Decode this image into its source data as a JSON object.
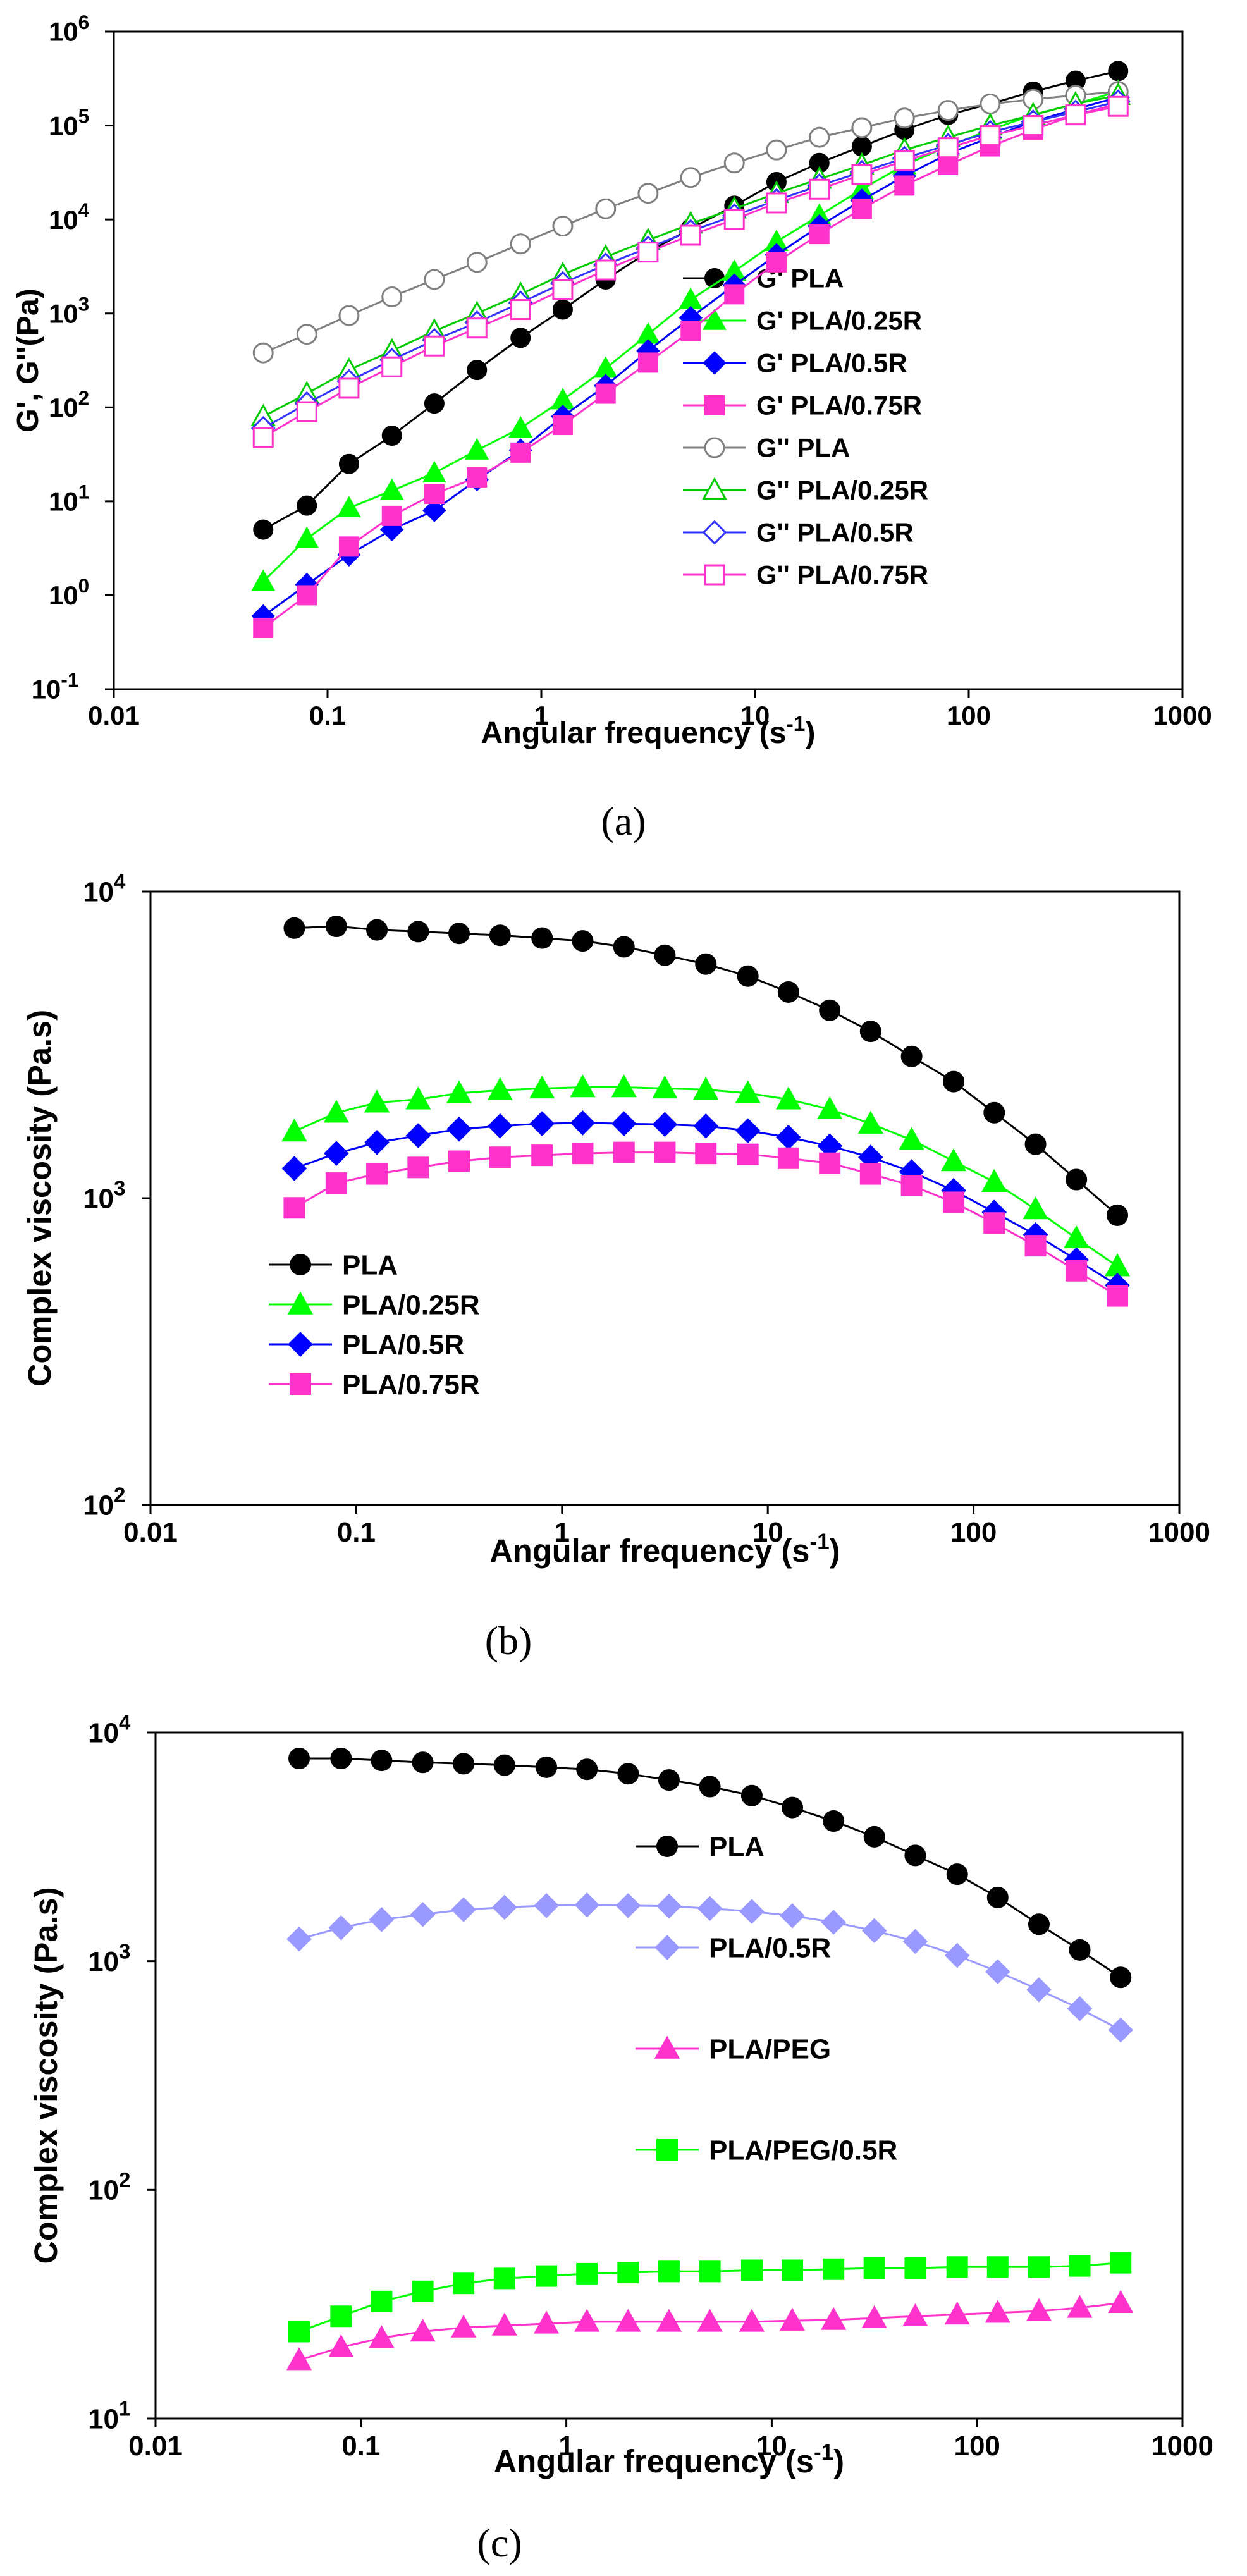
{
  "panels": [
    {
      "id": "a",
      "caption": "(a)",
      "x_axis_label": "Angular frequency (s",
      "x_axis_sup": "-1",
      "x_axis_suffix": ")",
      "y_axis_label": "G', G''(Pa)"
    },
    {
      "id": "b",
      "caption": "(b)",
      "x_axis_label": "Angular frequency (s",
      "x_axis_sup": "-1",
      "x_axis_suffix": ")",
      "y_axis_label": "Complex viscosity (Pa.s)"
    },
    {
      "id": "c",
      "caption": "(c)",
      "x_axis_label": "Angular frequency (s",
      "x_axis_sup": "-1",
      "x_axis_suffix": ")",
      "y_axis_label": "Complex viscosity (Pa.s)"
    }
  ],
  "chart_data": [
    {
      "panel": "a",
      "type": "line",
      "xscale": "log",
      "yscale": "log",
      "xlabel": "Angular frequency (s-1)",
      "ylabel": "G', G''(Pa)",
      "xlim": [
        0.01,
        1000
      ],
      "ylim": [
        0.1,
        1000000
      ],
      "x_ticks": [
        {
          "value": 0.01,
          "label": "0.01"
        },
        {
          "value": 0.1,
          "label": "0.1"
        },
        {
          "value": 1,
          "label": "1"
        },
        {
          "value": 10,
          "label": "10"
        },
        {
          "value": 100,
          "label": "100"
        },
        {
          "value": 1000,
          "label": "1000"
        }
      ],
      "y_ticks": [
        {
          "value": 0.1,
          "base": "10",
          "exp": "-1"
        },
        {
          "value": 1,
          "base": "10",
          "exp": "0"
        },
        {
          "value": 10,
          "base": "10",
          "exp": "1"
        },
        {
          "value": 100,
          "base": "10",
          "exp": "2"
        },
        {
          "value": 1000,
          "base": "10",
          "exp": "3"
        },
        {
          "value": 10000,
          "base": "10",
          "exp": "4"
        },
        {
          "value": 100000,
          "base": "10",
          "exp": "5"
        },
        {
          "value": 1000000,
          "base": "10",
          "exp": "6"
        }
      ],
      "legend_position": "right-middle",
      "legend_layout": "list",
      "x": [
        0.05,
        0.08,
        0.126,
        0.2,
        0.316,
        0.5,
        0.8,
        1.26,
        2,
        3.16,
        5,
        8,
        12.6,
        20,
        31.6,
        50,
        80,
        126,
        200,
        316,
        500
      ],
      "series": [
        {
          "name": "G' PLA",
          "color": "#000000",
          "marker": "circle",
          "filled": true,
          "values": [
            5,
            9,
            25,
            50,
            110,
            250,
            550,
            1100,
            2300,
            4500,
            8000,
            14000,
            25000,
            40000,
            60000,
            90000,
            130000,
            170000,
            230000,
            300000,
            380000
          ]
        },
        {
          "name": "G' PLA/0.25R",
          "color": "#00ff00",
          "marker": "triangle",
          "filled": true,
          "values": [
            1.4,
            4,
            8.5,
            13,
            20,
            35,
            60,
            120,
            260,
            600,
            1400,
            2800,
            5800,
            11000,
            21000,
            38000,
            60000,
            90000,
            130000,
            170000,
            230000
          ]
        },
        {
          "name": "G' PLA/0.5R",
          "color": "#0000ff",
          "marker": "diamond",
          "filled": true,
          "values": [
            0.6,
            1.3,
            2.7,
            5,
            8,
            17,
            35,
            80,
            170,
            400,
            900,
            2000,
            4200,
            8500,
            16000,
            29000,
            50000,
            75000,
            110000,
            150000,
            200000
          ]
        },
        {
          "name": "G' PLA/0.75R",
          "color": "#ff33cc",
          "marker": "square",
          "filled": true,
          "values": [
            0.45,
            1,
            3.3,
            7,
            12,
            18,
            33,
            65,
            140,
            300,
            650,
            1600,
            3500,
            7000,
            13000,
            23000,
            38000,
            60000,
            90000,
            130000,
            170000
          ]
        },
        {
          "name": "G'' PLA",
          "color": "#808080",
          "marker": "circle",
          "filled": false,
          "values": [
            380,
            600,
            950,
            1500,
            2300,
            3500,
            5500,
            8500,
            13000,
            19000,
            28000,
            40000,
            55000,
            75000,
            95000,
            120000,
            145000,
            170000,
            190000,
            210000,
            230000
          ]
        },
        {
          "name": "G'' PLA/0.25R",
          "color": "#00cc00",
          "marker": "triangle",
          "filled": false,
          "values": [
            80,
            140,
            250,
            400,
            650,
            1000,
            1600,
            2600,
            4000,
            6000,
            9000,
            13000,
            19000,
            27000,
            38000,
            55000,
            75000,
            100000,
            130000,
            170000,
            210000
          ]
        },
        {
          "name": "G'' PLA/0.5R",
          "color": "#3333ff",
          "marker": "diamond",
          "filled": false,
          "values": [
            60,
            110,
            190,
            320,
            520,
            800,
            1300,
            2100,
            3300,
            5000,
            7500,
            11000,
            16000,
            23000,
            32000,
            45000,
            62000,
            85000,
            110000,
            140000,
            180000
          ]
        },
        {
          "name": "G'' PLA/0.75R",
          "color": "#ff33cc",
          "marker": "square",
          "filled": false,
          "values": [
            48,
            90,
            160,
            270,
            450,
            700,
            1100,
            1800,
            2900,
            4500,
            6800,
            10000,
            15000,
            21000,
            30000,
            42000,
            58000,
            78000,
            100000,
            130000,
            160000
          ]
        }
      ]
    },
    {
      "panel": "b",
      "type": "line",
      "xscale": "log",
      "yscale": "log",
      "xlabel": "Angular frequency (s-1)",
      "ylabel": "Complex viscosity (Pa.s)",
      "xlim": [
        0.01,
        1000
      ],
      "ylim": [
        100,
        10000
      ],
      "x_ticks": [
        {
          "value": 0.01,
          "label": "0.01"
        },
        {
          "value": 0.1,
          "label": "0.1"
        },
        {
          "value": 1,
          "label": "1"
        },
        {
          "value": 10,
          "label": "10"
        },
        {
          "value": 100,
          "label": "100"
        },
        {
          "value": 1000,
          "label": "1000"
        }
      ],
      "y_ticks": [
        {
          "value": 100,
          "base": "10",
          "exp": "2"
        },
        {
          "value": 1000,
          "base": "10",
          "exp": "3"
        },
        {
          "value": 10000,
          "base": "10",
          "exp": "4"
        }
      ],
      "legend_position": "left-middle",
      "legend_layout": "list",
      "x": [
        0.05,
        0.08,
        0.126,
        0.2,
        0.316,
        0.5,
        0.8,
        1.26,
        2,
        3.16,
        5,
        8,
        12.6,
        20,
        31.6,
        50,
        80,
        126,
        200,
        316,
        500
      ],
      "series": [
        {
          "name": "PLA",
          "color": "#000000",
          "marker": "circle",
          "filled": true,
          "values": [
            7600,
            7700,
            7500,
            7400,
            7300,
            7200,
            7050,
            6900,
            6600,
            6200,
            5800,
            5300,
            4700,
            4100,
            3500,
            2900,
            2400,
            1900,
            1500,
            1150,
            880
          ]
        },
        {
          "name": "PLA/0.25R",
          "color": "#00ff00",
          "marker": "triangle",
          "filled": true,
          "values": [
            1650,
            1900,
            2050,
            2100,
            2200,
            2250,
            2280,
            2300,
            2300,
            2280,
            2260,
            2200,
            2100,
            1950,
            1750,
            1550,
            1320,
            1130,
            920,
            740,
            600
          ]
        },
        {
          "name": "PLA/0.5R",
          "color": "#0000ff",
          "marker": "diamond",
          "filled": true,
          "values": [
            1250,
            1400,
            1520,
            1600,
            1680,
            1720,
            1750,
            1760,
            1750,
            1740,
            1720,
            1660,
            1580,
            1480,
            1360,
            1220,
            1060,
            900,
            760,
            630,
            520
          ]
        },
        {
          "name": "PLA/0.75R",
          "color": "#ff33cc",
          "marker": "square",
          "filled": true,
          "values": [
            930,
            1120,
            1200,
            1260,
            1320,
            1360,
            1380,
            1400,
            1410,
            1410,
            1400,
            1390,
            1350,
            1300,
            1200,
            1100,
            970,
            830,
            700,
            580,
            480
          ]
        }
      ]
    },
    {
      "panel": "c",
      "type": "line",
      "xscale": "log",
      "yscale": "log",
      "xlabel": "Angular frequency (s-1)",
      "ylabel": "Complex viscosity (Pa.s)",
      "xlim": [
        0.01,
        1000
      ],
      "ylim": [
        10,
        10000
      ],
      "x_ticks": [
        {
          "value": 0.01,
          "label": "0.01"
        },
        {
          "value": 0.1,
          "label": "0.1"
        },
        {
          "value": 1,
          "label": "1"
        },
        {
          "value": 10,
          "label": "10"
        },
        {
          "value": 100,
          "label": "100"
        },
        {
          "value": 1000,
          "label": "1000"
        }
      ],
      "y_ticks": [
        {
          "value": 10,
          "base": "10",
          "exp": "1"
        },
        {
          "value": 100,
          "base": "10",
          "exp": "2"
        },
        {
          "value": 1000,
          "base": "10",
          "exp": "3"
        },
        {
          "value": 10000,
          "base": "10",
          "exp": "4"
        }
      ],
      "legend_position": "center",
      "legend_layout": "spaced",
      "x": [
        0.05,
        0.08,
        0.126,
        0.2,
        0.316,
        0.5,
        0.8,
        1.26,
        2,
        3.16,
        5,
        8,
        12.6,
        20,
        31.6,
        50,
        80,
        126,
        200,
        316,
        500
      ],
      "series": [
        {
          "name": "PLA",
          "color": "#000000",
          "marker": "circle",
          "filled": true,
          "values": [
            7700,
            7700,
            7550,
            7400,
            7300,
            7200,
            7050,
            6900,
            6600,
            6200,
            5800,
            5300,
            4700,
            4100,
            3500,
            2900,
            2400,
            1900,
            1450,
            1120,
            850
          ]
        },
        {
          "name": "PLA/0.5R",
          "color": "#9999ff",
          "marker": "diamond",
          "filled": true,
          "values": [
            1250,
            1400,
            1520,
            1600,
            1680,
            1720,
            1750,
            1760,
            1750,
            1740,
            1700,
            1650,
            1580,
            1480,
            1360,
            1220,
            1060,
            900,
            750,
            620,
            500
          ]
        },
        {
          "name": "PLA/PEG",
          "color": "#ff33cc",
          "marker": "triangle",
          "filled": true,
          "values": [
            18,
            20.5,
            22.5,
            24,
            25,
            25.5,
            26,
            26.5,
            26.5,
            26.5,
            26.5,
            26.5,
            26.8,
            27,
            27.5,
            28,
            28.5,
            29,
            29.5,
            30.5,
            32
          ]
        },
        {
          "name": "PLA/PEG/0.5R",
          "color": "#00ff00",
          "marker": "square",
          "filled": true,
          "values": [
            24,
            28,
            32.5,
            36,
            39,
            41,
            42,
            43,
            43.5,
            44,
            44,
            44.5,
            44.5,
            45,
            45.5,
            45.5,
            46,
            46,
            46,
            46.5,
            48
          ]
        }
      ]
    }
  ]
}
